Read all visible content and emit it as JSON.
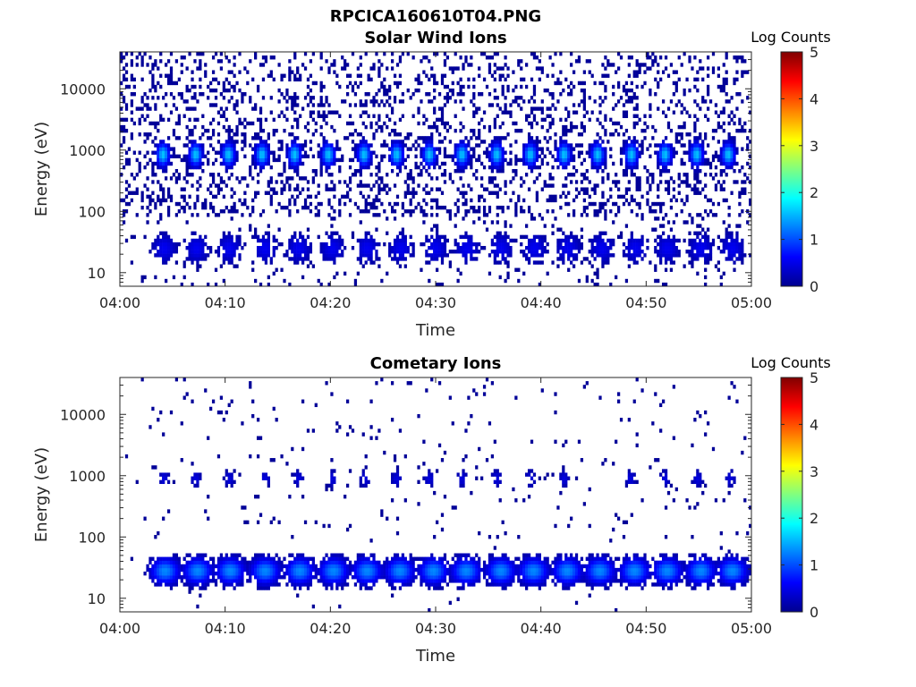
{
  "figure": {
    "title": "RPCICA160610T04.PNG"
  },
  "colormap": {
    "name": "jet",
    "stops": [
      "#00008f",
      "#0000ff",
      "#0080ff",
      "#00ffff",
      "#80ff80",
      "#ffff00",
      "#ff8000",
      "#ff0000",
      "#800000"
    ]
  },
  "chart_data": [
    {
      "type": "heatmap",
      "title": "Solar Wind Ions",
      "xlabel": "Time",
      "ylabel": "Energy (eV)",
      "x_range": [
        "04:00",
        "05:00"
      ],
      "x_ticks": [
        "04:00",
        "04:10",
        "04:20",
        "04:30",
        "04:40",
        "04:50",
        "05:00"
      ],
      "y_scale": "log",
      "y_range": [
        6,
        40000
      ],
      "y_ticks": [
        10,
        100,
        1000,
        10000
      ],
      "y_tick_labels": [
        "10",
        "100",
        "1000",
        "10000"
      ],
      "colorbar": {
        "title": "Log Counts",
        "range": [
          0,
          5
        ],
        "ticks": [
          "0",
          "1",
          "2",
          "3",
          "4",
          "5"
        ]
      },
      "seed": 11,
      "background_density": 0.3,
      "background_ymin": 80,
      "bursts": [
        {
          "t_minutes": [
            4.1,
            7.2,
            10.3,
            13.5,
            16.6,
            19.8,
            23.2,
            26.3,
            29.4,
            32.5,
            35.8,
            39.0,
            42.2,
            45.4,
            48.6,
            51.8,
            54.8,
            57.8
          ],
          "energy_eV": 850,
          "peak_log_counts": 1.6,
          "width_min": 0.6,
          "height_decades": 0.18
        },
        {
          "t_minutes": [
            4.2,
            7.3,
            10.4,
            13.8,
            17.0,
            20.2,
            23.5,
            26.7,
            30.0,
            33.0,
            36.2,
            39.4,
            42.6,
            45.8,
            49.0,
            52.0,
            55.2,
            58.2
          ],
          "energy_eV": 25,
          "peak_log_counts": 0.55,
          "width_min": 1.1,
          "height_decades": 0.22
        }
      ]
    },
    {
      "type": "heatmap",
      "title": "Cometary Ions",
      "xlabel": "Time",
      "ylabel": "Energy (eV)",
      "x_range": [
        "04:00",
        "05:00"
      ],
      "x_ticks": [
        "04:00",
        "04:10",
        "04:20",
        "04:30",
        "04:40",
        "04:50",
        "05:00"
      ],
      "y_scale": "log",
      "y_range": [
        6,
        40000
      ],
      "y_ticks": [
        10,
        100,
        1000,
        10000
      ],
      "y_tick_labels": [
        "10",
        "100",
        "1000",
        "10000"
      ],
      "colorbar": {
        "title": "Log Counts",
        "range": [
          0,
          5
        ],
        "ticks": [
          "0",
          "1",
          "2",
          "3",
          "4",
          "5"
        ]
      },
      "seed": 29,
      "background_density": 0.035,
      "background_ymin": 100,
      "bursts": [
        {
          "t_minutes": [
            4.2,
            7.2,
            10.4,
            13.8,
            17.0,
            20.2,
            23.3,
            26.3,
            29.4,
            32.5,
            35.8,
            39.0,
            42.2,
            48.5,
            51.8,
            54.9,
            58.0
          ],
          "energy_eV": 900,
          "peak_log_counts": 0.45,
          "width_min": 0.5,
          "height_decades": 0.13
        },
        {
          "t_minutes": [
            4.3,
            7.4,
            10.5,
            13.8,
            17.1,
            20.3,
            23.5,
            26.6,
            29.8,
            32.9,
            36.2,
            39.3,
            42.5,
            45.6,
            48.9,
            52.0,
            55.2,
            58.2
          ],
          "energy_eV": 28,
          "peak_log_counts": 1.3,
          "width_min": 1.3,
          "height_decades": 0.2
        }
      ]
    }
  ]
}
